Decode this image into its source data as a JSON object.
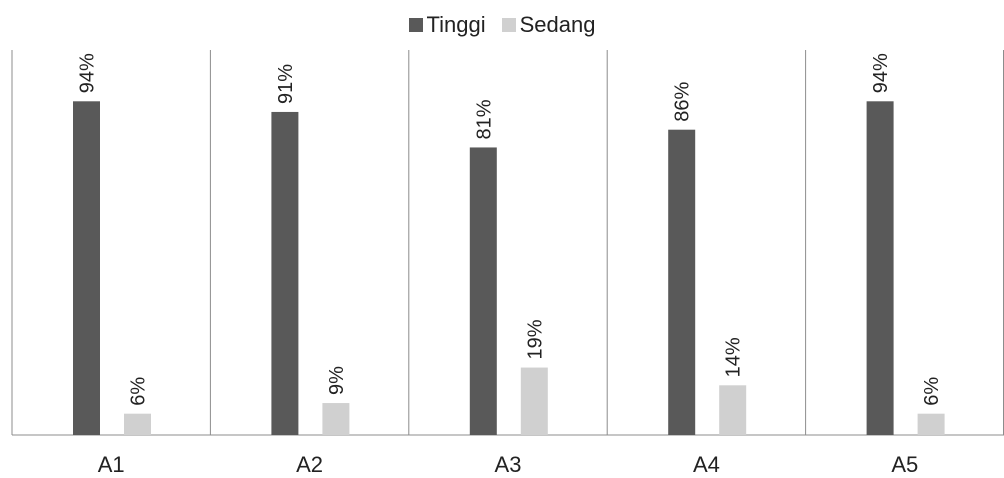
{
  "chart_data": {
    "type": "bar",
    "categories": [
      "A1",
      "A2",
      "A3",
      "A4",
      "A5"
    ],
    "series": [
      {
        "name": "Tinggi",
        "values": [
          94,
          91,
          81,
          86,
          94
        ],
        "labels": [
          "94%",
          "91%",
          "81%",
          "86%",
          "94%"
        ],
        "color": "#595959"
      },
      {
        "name": "Sedang",
        "values": [
          6,
          9,
          19,
          14,
          6
        ],
        "labels": [
          "6%",
          "9%",
          "19%",
          "14%",
          "6%"
        ],
        "color": "#d0d0d0"
      }
    ],
    "ylim": [
      0,
      100
    ],
    "grid": false,
    "legend_position": "top-center",
    "title": "",
    "xlabel": "",
    "ylabel": ""
  }
}
